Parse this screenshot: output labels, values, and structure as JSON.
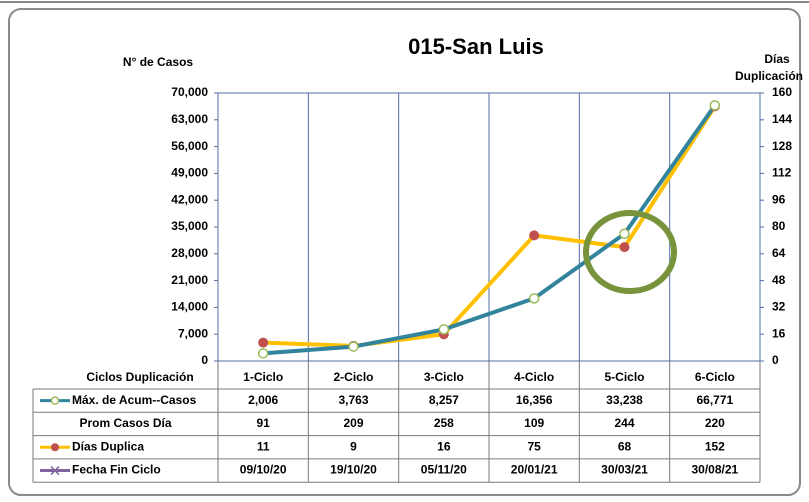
{
  "chart_data": {
    "type": "line",
    "title": "015-San Luis",
    "y_label": "N° de Casos",
    "y2_label": [
      "Días",
      "Duplicación"
    ],
    "x_label": "Ciclos Duplicación",
    "categories": [
      "1-Ciclo",
      "2-Ciclo",
      "3-Ciclo",
      "4-Ciclo",
      "5-Ciclo",
      "6-Ciclo"
    ],
    "series": [
      {
        "name": "Máx. de Acum--Casos",
        "color": "#31849b",
        "marker_color": "#9bbb59",
        "values": [
          2006,
          3763,
          8257,
          16356,
          33238,
          66771
        ],
        "value_labels": [
          "2,006",
          "3,763",
          "8,257",
          "16,356",
          "33,238",
          "66,771"
        ],
        "axis": "y"
      },
      {
        "name": "Días Duplica",
        "color": "#ffc000",
        "marker_color": "#c0504d",
        "values": [
          11,
          9,
          16,
          75,
          68,
          152
        ],
        "axis": "y2"
      }
    ],
    "table_rows": [
      {
        "name": "Prom Casos Día",
        "values": [
          91,
          209,
          258,
          109,
          244,
          220
        ]
      },
      {
        "name": "Fecha Fin Ciclo",
        "color": "#8064a2",
        "values": [
          "09/10/20",
          "19/10/20",
          "05/11/20",
          "20/01/21",
          "30/03/21",
          "30/08/21"
        ]
      }
    ],
    "ylim": [
      0,
      70000
    ],
    "yticks": [
      0,
      {
        "value": 7000,
        "label": "7,000"
      },
      {
        "value": 14000,
        "label": "14,000"
      },
      {
        "value": 21000,
        "label": "21,000"
      },
      {
        "value": 28000,
        "label": "28,000"
      },
      {
        "value": 35000,
        "label": "35,000"
      },
      {
        "value": 42000,
        "label": "42,000"
      },
      {
        "value": 49000,
        "label": "49,000"
      },
      {
        "value": 56000,
        "label": "56,000"
      },
      {
        "value": 63000,
        "label": "63,000"
      },
      {
        "value": 70000,
        "label": "70,000"
      }
    ],
    "y2lim": [
      0,
      160
    ],
    "y2ticks": [
      0,
      16,
      32,
      48,
      64,
      80,
      96,
      112,
      128,
      144,
      160
    ],
    "grid": false
  }
}
